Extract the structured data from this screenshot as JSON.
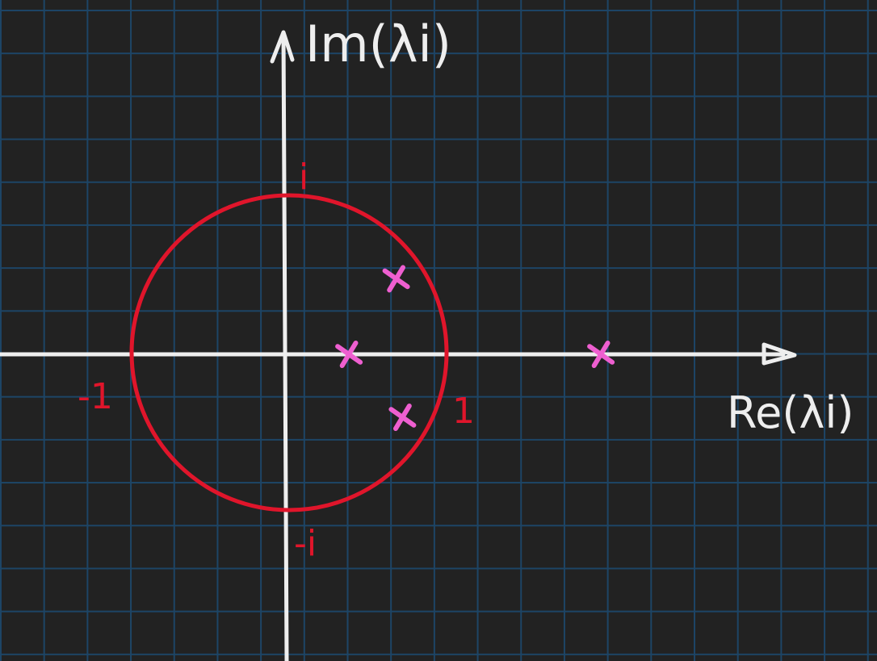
{
  "axes": {
    "imaginary_label": "Im(λi)",
    "real_label": "Re(λi)"
  },
  "unit_circle": {
    "radius": 1,
    "label_i": "i",
    "label_neg_i": "-i",
    "label_one": "1",
    "label_neg_one": "-1"
  },
  "eigenvalues": [
    {
      "re": 0.38,
      "im": 0.0
    },
    {
      "re": 0.68,
      "im": 0.48
    },
    {
      "re": 0.72,
      "im": -0.4
    },
    {
      "re": 1.98,
      "im": 0.0
    }
  ],
  "colors": {
    "background": "#222222",
    "grid": "#1d4566",
    "axes": "#eeeeee",
    "circle": "#e0152b",
    "eigenvalue_marks": "#ee5fd0",
    "circle_labels": "#e0152b"
  }
}
